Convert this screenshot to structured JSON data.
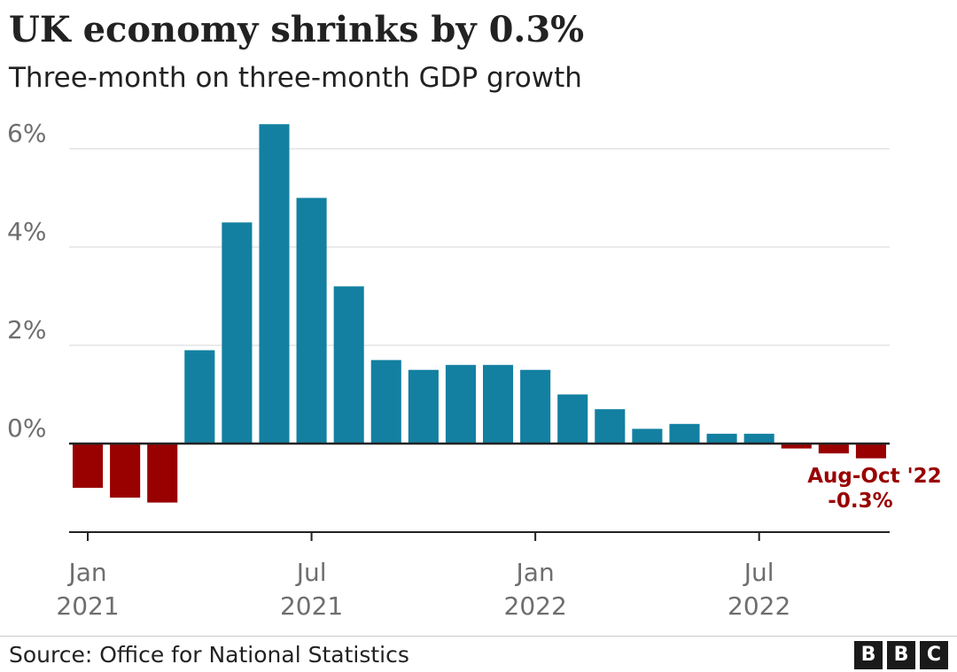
{
  "header": {
    "title": "UK economy shrinks by 0.3%",
    "subtitle": "Three-month on three-month GDP growth"
  },
  "footer": {
    "source": "Source: Office for National Statistics",
    "logo_letters": [
      "B",
      "B",
      "C"
    ]
  },
  "chart_data": {
    "type": "bar",
    "title": "UK economy shrinks by 0.3%",
    "subtitle": "Three-month on three-month GDP growth",
    "categories": [
      "Jan 2021",
      "Feb 2021",
      "Mar 2021",
      "Apr 2021",
      "May 2021",
      "Jun 2021",
      "Jul 2021",
      "Aug 2021",
      "Sep 2021",
      "Oct 2021",
      "Nov 2021",
      "Dec 2021",
      "Jan 2022",
      "Feb 2022",
      "Mar 2022",
      "Apr 2022",
      "May 2022",
      "Jun 2022",
      "Jul 2022",
      "Aug 2022",
      "Sep 2022",
      "Oct 2022"
    ],
    "values": [
      -0.9,
      -1.1,
      -1.2,
      1.9,
      4.5,
      6.5,
      5.0,
      3.2,
      1.7,
      1.5,
      1.6,
      1.6,
      1.5,
      1.0,
      0.7,
      0.3,
      0.4,
      0.2,
      0.2,
      -0.1,
      -0.2,
      -0.3
    ],
    "ylim": [
      -1.8,
      6.8
    ],
    "yticks": [
      0,
      2,
      4,
      6
    ],
    "ytick_labels": [
      "0%",
      "2%",
      "4%",
      "6%"
    ],
    "xticks": [
      {
        "index": 0,
        "line1": "Jan",
        "line2": "2021"
      },
      {
        "index": 6,
        "line1": "Jul",
        "line2": "2021"
      },
      {
        "index": 12,
        "line1": "Jan",
        "line2": "2022"
      },
      {
        "index": 18,
        "line1": "Jul",
        "line2": "2022"
      }
    ],
    "annotation": {
      "index": 21,
      "line1": "Aug-Oct '22",
      "line2": "-0.3%"
    },
    "grid": true,
    "colors": {
      "positive": "#1380A1",
      "negative": "#990000",
      "grid": "#dddddd",
      "axis": "#222222",
      "tick_text": "#6e6e6e",
      "annotation": "#990000"
    }
  }
}
